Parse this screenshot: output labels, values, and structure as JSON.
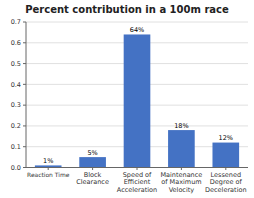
{
  "chart_data": {
    "type": "bar",
    "title": "Percent contribution in a 100m race",
    "categories": [
      "Reaction Time",
      "Block\nClearance",
      "Speed of\nEfficient\nAcceleration",
      "Maintenance\nof Maximum\nVelocity",
      "Lessened\nDegree of\nDeceleration"
    ],
    "values": [
      0.01,
      0.05,
      0.64,
      0.18,
      0.12
    ],
    "value_labels": [
      "1%",
      "5%",
      "64%",
      "18%",
      "12%"
    ],
    "data_labels": true,
    "color": "#4472C4",
    "ylim": [
      0,
      0.7
    ],
    "yticks": [
      {
        "value": 0,
        "label": "0.0"
      },
      0.1,
      0.2,
      0.3,
      0.4,
      0.5,
      0.6,
      0.7
    ],
    "grid": true
  }
}
